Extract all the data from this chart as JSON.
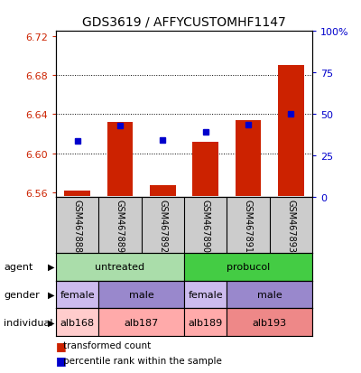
{
  "title": "GDS3619 / AFFYCUSTOMHF1147",
  "samples": [
    "GSM467888",
    "GSM467889",
    "GSM467892",
    "GSM467890",
    "GSM467891",
    "GSM467893"
  ],
  "bar_values": [
    6.562,
    6.632,
    6.567,
    6.612,
    6.634,
    6.69
  ],
  "bar_base": 6.556,
  "percentile_values": [
    6.613,
    6.628,
    6.614,
    6.622,
    6.629,
    6.64
  ],
  "ylim_left": [
    6.555,
    6.725
  ],
  "ylim_right": [
    0,
    100
  ],
  "yticks_left": [
    6.56,
    6.6,
    6.64,
    6.68,
    6.72
  ],
  "yticks_right": [
    0,
    25,
    50,
    75,
    100
  ],
  "ytick_labels_left": [
    "6.56",
    "6.60",
    "6.64",
    "6.68",
    "6.72"
  ],
  "ytick_labels_right": [
    "0",
    "25",
    "50",
    "75",
    "100%"
  ],
  "bar_color": "#cc2200",
  "dot_color": "#0000cc",
  "agent_colors_map": {
    "untreated": "#aaddaa",
    "probucol": "#44cc44"
  },
  "gender_colors_map": {
    "female": "#ccbbee",
    "male": "#9988cc"
  },
  "individual_colors_map": {
    "alb168": "#ffcccc",
    "alb187": "#ffaaaa",
    "alb189": "#ffaaaa",
    "alb193": "#ee8888"
  },
  "agent_data": [
    [
      "untreated",
      0,
      3
    ],
    [
      "probucol",
      3,
      6
    ]
  ],
  "gender_data": [
    [
      "female",
      0,
      1
    ],
    [
      "male",
      1,
      3
    ],
    [
      "female",
      3,
      4
    ],
    [
      "male",
      4,
      6
    ]
  ],
  "indiv_data": [
    [
      "alb168",
      0,
      1
    ],
    [
      "alb187",
      1,
      3
    ],
    [
      "alb189",
      3,
      4
    ],
    [
      "alb193",
      4,
      6
    ]
  ],
  "row_labels": [
    "agent",
    "gender",
    "individual"
  ],
  "legend_bar_label": "transformed count",
  "legend_dot_label": "percentile rank within the sample",
  "background_color": "#ffffff",
  "sample_box_color": "#cccccc",
  "grid_dotted_color": "#000000"
}
